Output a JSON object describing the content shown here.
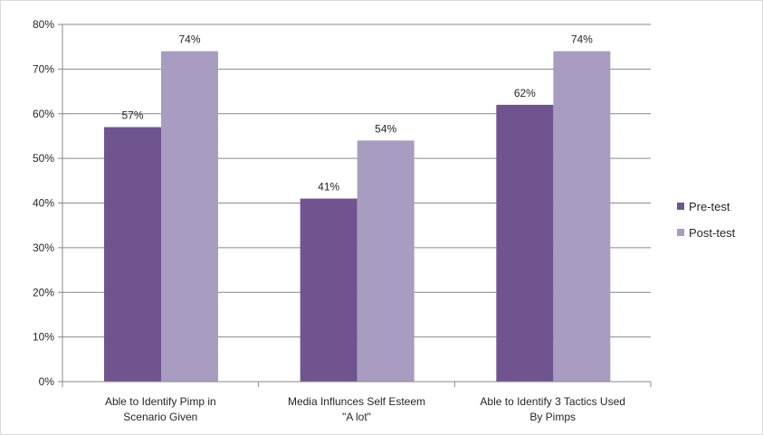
{
  "chart_data": {
    "type": "bar",
    "categories": [
      [
        "Able to Identify Pimp in",
        "Scenario Given"
      ],
      [
        "Media Influnces Self Esteem",
        "\"A lot\""
      ],
      [
        "Able to Identify 3 Tactics Used",
        "By Pimps"
      ]
    ],
    "series": [
      {
        "name": "Pre-test",
        "color": "#6f5490",
        "values": [
          57,
          41,
          62
        ],
        "labels": [
          "57%",
          "41%",
          "62%"
        ]
      },
      {
        "name": "Post-test",
        "color": "#a99cc1",
        "values": [
          74,
          54,
          74
        ],
        "labels": [
          "74%",
          "54%",
          "74%"
        ]
      }
    ],
    "ylim": [
      0,
      80
    ],
    "yticks": [
      0,
      10,
      20,
      30,
      40,
      50,
      60,
      70,
      80
    ],
    "ytick_labels": [
      "0%",
      "10%",
      "20%",
      "30%",
      "40%",
      "50%",
      "60%",
      "70%",
      "80%"
    ],
    "grid": true,
    "legend": "right",
    "title": "",
    "xlabel": "",
    "ylabel": ""
  }
}
